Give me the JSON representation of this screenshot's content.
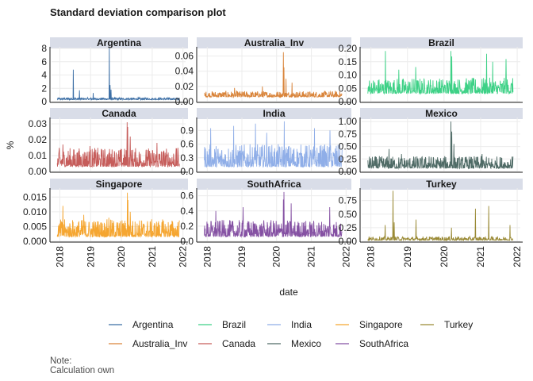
{
  "title": "Standard deviation comparison plot",
  "note": {
    "line1": "Note:",
    "line2": "Calculation own"
  },
  "chart_data": {
    "type": "line",
    "layout": "facet-grid-3x3",
    "xlabel": "date",
    "ylabel": "%",
    "x_ticks": [
      "2018",
      "2019",
      "2020",
      "2021",
      "2022"
    ],
    "x_range": [
      "2017-11-01",
      "2022-02-01"
    ],
    "data_span": [
      "2017-12-01",
      "2021-11-20"
    ],
    "grid": true,
    "legend_position": "bottom",
    "panels": [
      {
        "name": "Argentina",
        "color": "#3b6ea5",
        "ylim": [
          0,
          8
        ],
        "yticks": [
          "0",
          "2",
          "4",
          "6",
          "8"
        ],
        "base": 0.3,
        "noise": 0.3,
        "spikes": [
          {
            "date": "2018-06-10",
            "value": 4.8
          },
          {
            "date": "2018-08-20",
            "value": 1.7
          },
          {
            "date": "2019-02-01",
            "value": 1.3
          },
          {
            "date": "2019-08-12",
            "value": 8.0
          },
          {
            "date": "2019-08-20",
            "value": 2.5
          },
          {
            "date": "2019-09-01",
            "value": 1.8
          },
          {
            "date": "2020-03-15",
            "value": 0.5
          }
        ]
      },
      {
        "name": "Australia_Inv",
        "color": "#d9843a",
        "ylim": [
          0,
          0.07
        ],
        "yticks": [
          "0.00",
          "0.02",
          "0.04",
          "0.06"
        ],
        "base": 0.006,
        "noise": 0.008,
        "spikes": [
          {
            "date": "2018-10-15",
            "value": 0.018
          },
          {
            "date": "2019-08-05",
            "value": 0.02
          },
          {
            "date": "2020-03-12",
            "value": 0.065
          },
          {
            "date": "2020-03-20",
            "value": 0.045
          },
          {
            "date": "2020-04-10",
            "value": 0.03
          },
          {
            "date": "2020-06-10",
            "value": 0.025
          }
        ]
      },
      {
        "name": "Brazil",
        "color": "#3dd186",
        "ylim": [
          0,
          0.2
        ],
        "yticks": [
          "0.00",
          "0.05",
          "0.10",
          "0.15",
          "0.20"
        ],
        "base": 0.03,
        "noise": 0.06,
        "spikes": [
          {
            "date": "2018-05-25",
            "value": 0.19
          },
          {
            "date": "2018-10-05",
            "value": 0.12
          },
          {
            "date": "2019-03-25",
            "value": 0.13
          },
          {
            "date": "2020-03-10",
            "value": 0.19
          },
          {
            "date": "2020-03-18",
            "value": 0.17
          },
          {
            "date": "2021-03-01",
            "value": 0.18
          },
          {
            "date": "2021-05-01",
            "value": 0.15
          },
          {
            "date": "2021-09-10",
            "value": 0.16
          }
        ]
      },
      {
        "name": "Canada",
        "color": "#c65d5b",
        "ylim": [
          0,
          0.033
        ],
        "yticks": [
          "0.00",
          "0.01",
          "0.02",
          "0.03"
        ],
        "base": 0.003,
        "noise": 0.012,
        "spikes": [
          {
            "date": "2018-02-06",
            "value": 0.017
          },
          {
            "date": "2018-12-24",
            "value": 0.016
          },
          {
            "date": "2020-03-09",
            "value": 0.031
          },
          {
            "date": "2020-03-16",
            "value": 0.028
          },
          {
            "date": "2020-04-15",
            "value": 0.022
          },
          {
            "date": "2021-02-26",
            "value": 0.018
          }
        ]
      },
      {
        "name": "India",
        "color": "#8faee8",
        "ylim": [
          0,
          1.15
        ],
        "yticks": [
          "0.0",
          "0.3",
          "0.6",
          "0.9"
        ],
        "base": 0.1,
        "noise": 0.5,
        "spikes": [
          {
            "date": "2018-02-06",
            "value": 0.95
          },
          {
            "date": "2018-10-05",
            "value": 1.0
          },
          {
            "date": "2019-05-23",
            "value": 1.05
          },
          {
            "date": "2019-09-20",
            "value": 0.85
          },
          {
            "date": "2020-03-23",
            "value": 1.1
          },
          {
            "date": "2021-02-01",
            "value": 0.95
          },
          {
            "date": "2021-07-15",
            "value": 0.9
          }
        ]
      },
      {
        "name": "Mexico",
        "color": "#4f6b66",
        "ylim": [
          0,
          1.05
        ],
        "yticks": [
          "0.00",
          "0.25",
          "0.50",
          "0.75",
          "1.00"
        ],
        "base": 0.06,
        "noise": 0.25,
        "spikes": [
          {
            "date": "2018-07-02",
            "value": 0.45
          },
          {
            "date": "2018-11-01",
            "value": 0.35
          },
          {
            "date": "2019-08-05",
            "value": 0.3
          },
          {
            "date": "2020-03-09",
            "value": 1.0
          },
          {
            "date": "2020-03-18",
            "value": 0.8
          },
          {
            "date": "2020-04-10",
            "value": 0.55
          },
          {
            "date": "2021-01-15",
            "value": 0.35
          }
        ]
      },
      {
        "name": "Singapore",
        "color": "#f5a631",
        "ylim": [
          0,
          0.0175
        ],
        "yticks": [
          "0.000",
          "0.005",
          "0.010",
          "0.015"
        ],
        "base": 0.0015,
        "noise": 0.006,
        "spikes": [
          {
            "date": "2018-02-06",
            "value": 0.012
          },
          {
            "date": "2018-10-11",
            "value": 0.009
          },
          {
            "date": "2019-08-05",
            "value": 0.008
          },
          {
            "date": "2020-03-12",
            "value": 0.0165
          },
          {
            "date": "2020-03-20",
            "value": 0.014
          },
          {
            "date": "2020-04-15",
            "value": 0.01
          }
        ]
      },
      {
        "name": "SouthAfrica",
        "color": "#8551a3",
        "ylim": [
          0,
          0.68
        ],
        "yticks": [
          "0.0",
          "0.2",
          "0.4",
          "0.6"
        ],
        "base": 0.06,
        "noise": 0.22,
        "spikes": [
          {
            "date": "2018-04-01",
            "value": 0.4
          },
          {
            "date": "2019-01-15",
            "value": 0.45
          },
          {
            "date": "2020-03-12",
            "value": 0.55
          },
          {
            "date": "2020-03-20",
            "value": 0.65
          },
          {
            "date": "2020-06-01",
            "value": 0.5
          },
          {
            "date": "2021-07-12",
            "value": 0.45
          }
        ]
      },
      {
        "name": "Turkey",
        "color": "#9a8a35",
        "ylim": [
          0,
          0.95
        ],
        "yticks": [
          "0.00",
          "0.25",
          "0.50",
          "0.75"
        ],
        "base": 0.02,
        "noise": 0.07,
        "spikes": [
          {
            "date": "2018-05-23",
            "value": 0.3
          },
          {
            "date": "2018-08-10",
            "value": 0.93
          },
          {
            "date": "2018-08-20",
            "value": 0.35
          },
          {
            "date": "2019-03-27",
            "value": 0.4
          },
          {
            "date": "2020-03-15",
            "value": 0.25
          },
          {
            "date": "2020-11-09",
            "value": 0.6
          },
          {
            "date": "2021-03-22",
            "value": 0.65
          },
          {
            "date": "2021-10-20",
            "value": 0.3
          }
        ]
      }
    ],
    "legend": [
      {
        "name": "Argentina",
        "color": "#3b6ea5"
      },
      {
        "name": "Brazil",
        "color": "#3dd186"
      },
      {
        "name": "India",
        "color": "#8faee8"
      },
      {
        "name": "Singapore",
        "color": "#f5a631"
      },
      {
        "name": "Turkey",
        "color": "#9a8a35"
      },
      {
        "name": "Australia_Inv",
        "color": "#d9843a"
      },
      {
        "name": "Canada",
        "color": "#c65d5b"
      },
      {
        "name": "Mexico",
        "color": "#4f6b66"
      },
      {
        "name": "SouthAfrica",
        "color": "#8551a3"
      }
    ]
  }
}
